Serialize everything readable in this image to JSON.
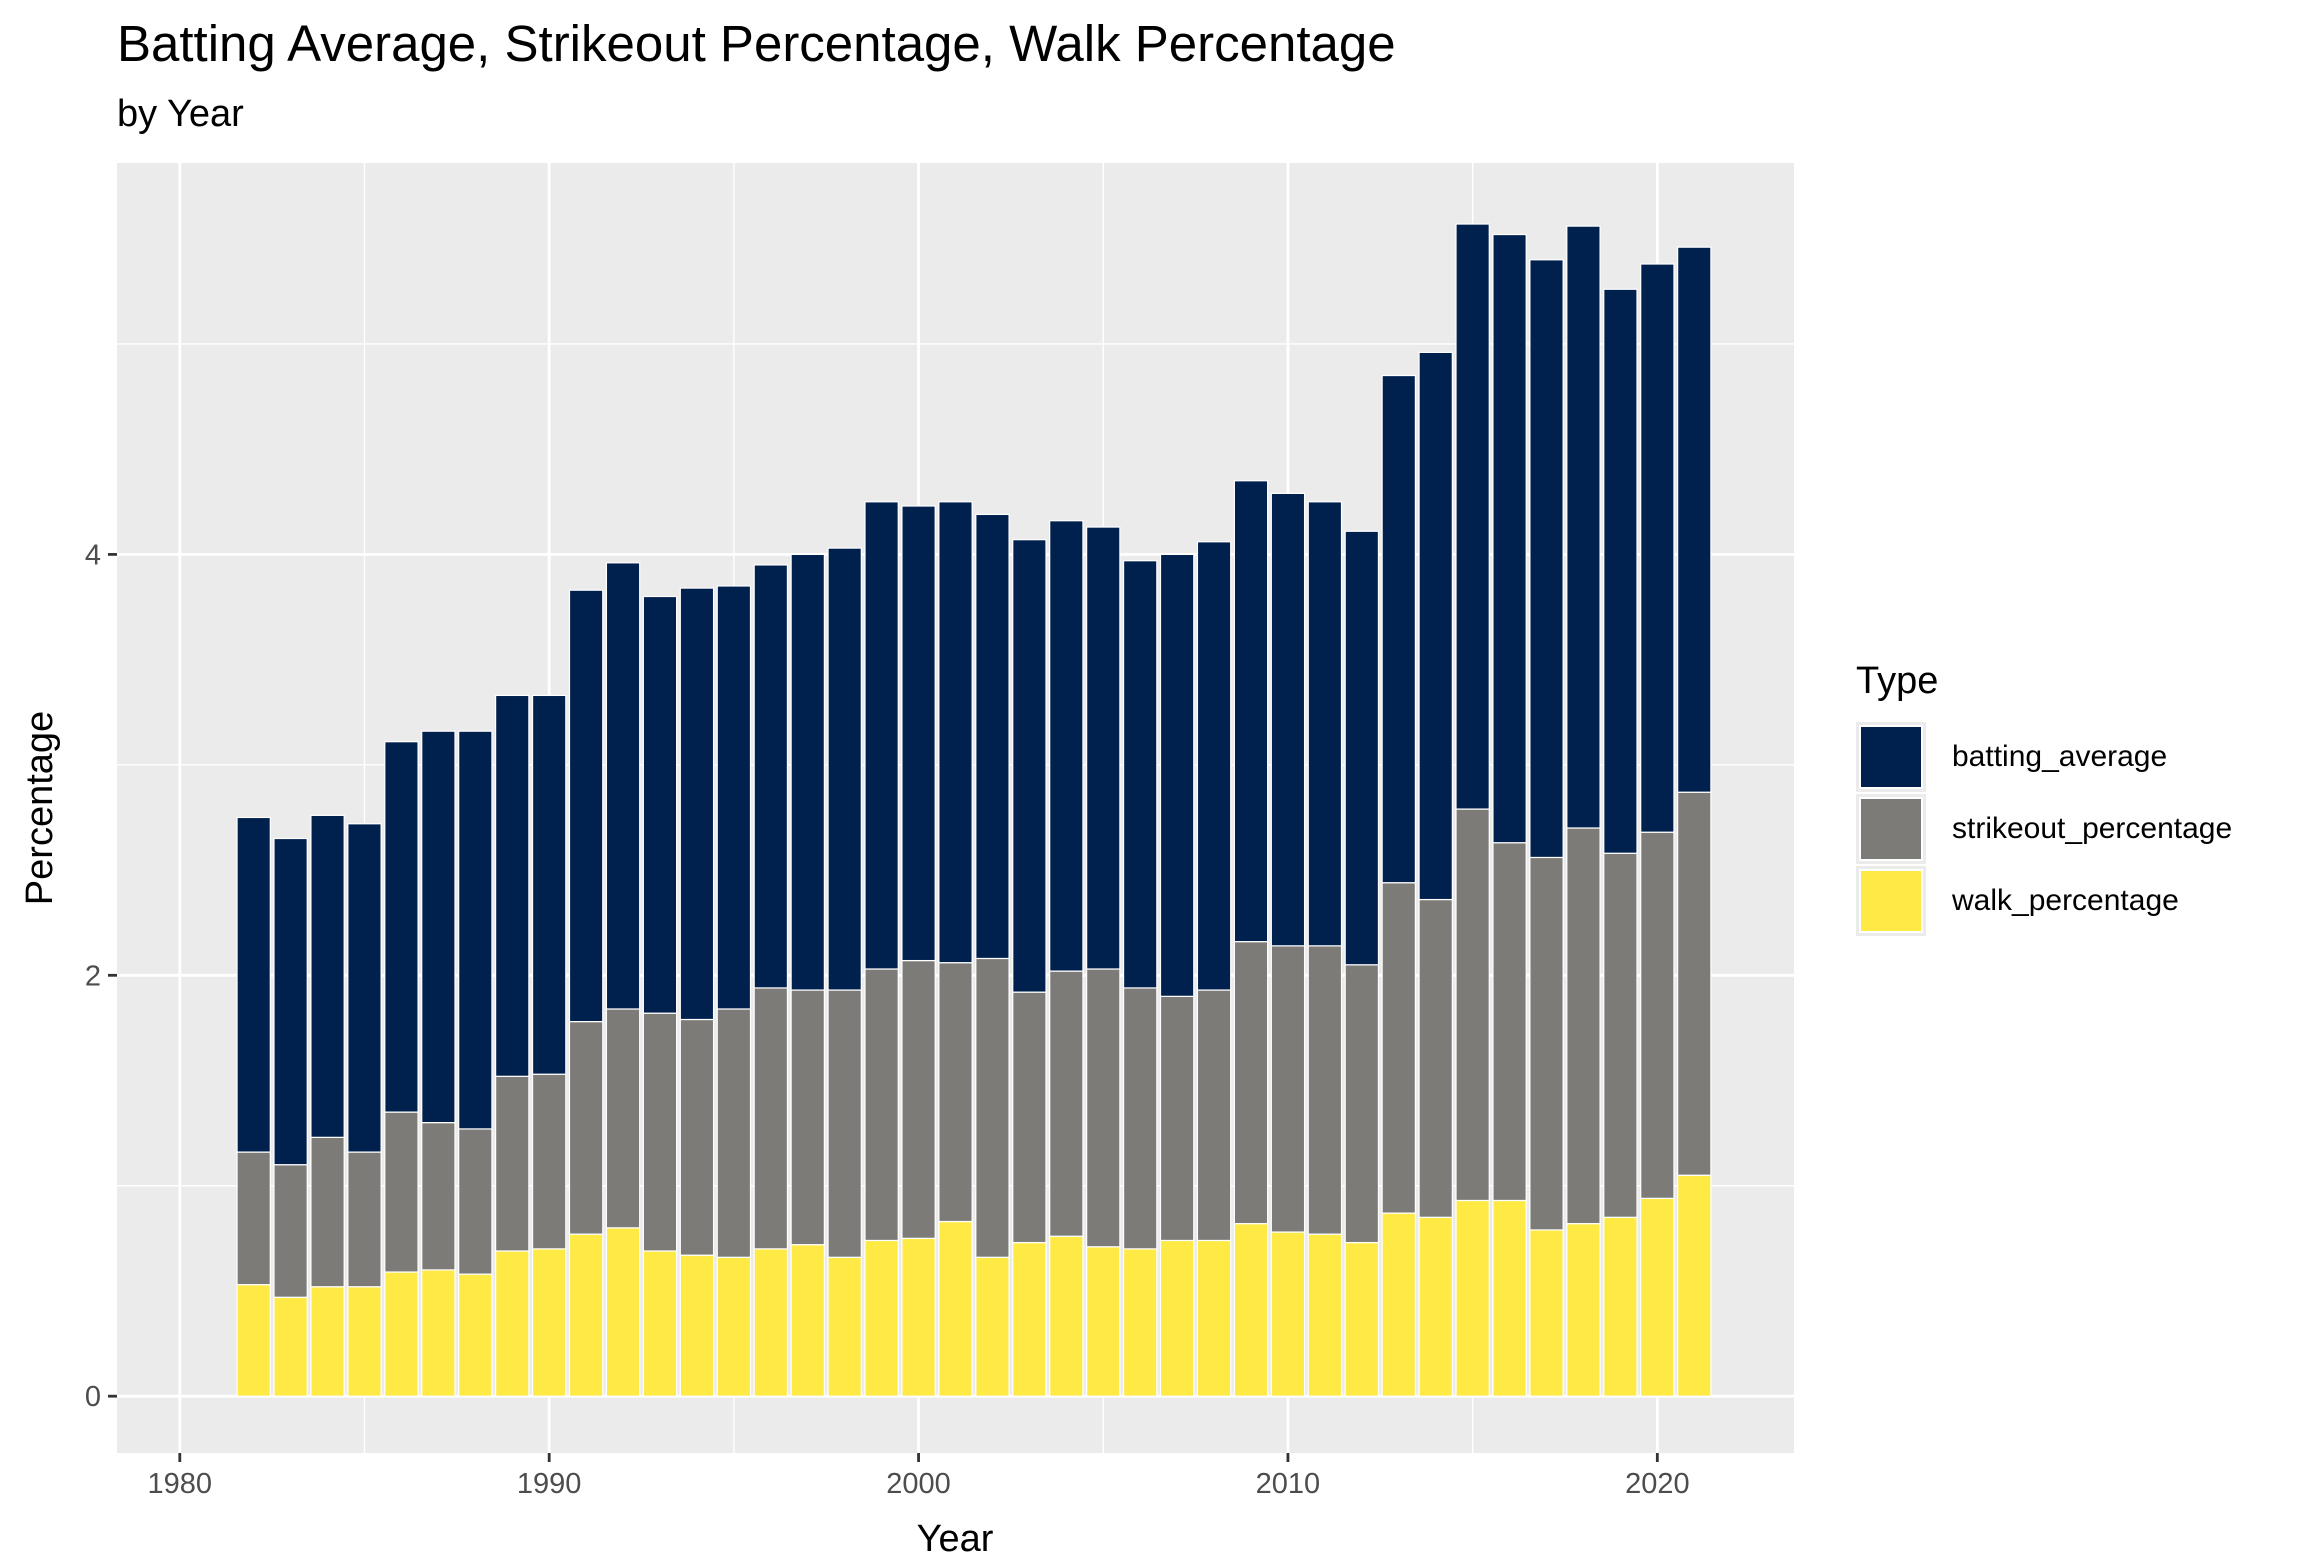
{
  "title": "Batting Average, Strikeout Percentage, Walk Percentage",
  "subtitle": "by Year",
  "chart_data": {
    "type": "bar",
    "stacked": true,
    "xlabel": "Year",
    "ylabel": "Percentage",
    "xlim": [
      1978.3,
      2023.7
    ],
    "ylim": [
      -0.27,
      5.86
    ],
    "x_ticks": [
      1980,
      1990,
      2000,
      2010,
      2020
    ],
    "y_ticks": [
      0,
      2,
      4
    ],
    "grid": true,
    "legend": {
      "title": "Type",
      "position": "right"
    },
    "x": [
      1982,
      1983,
      1984,
      1985,
      1986,
      1987,
      1988,
      1989,
      1990,
      1991,
      1992,
      1993,
      1994,
      1995,
      1996,
      1997,
      1998,
      1999,
      2000,
      2001,
      2002,
      2003,
      2004,
      2005,
      2006,
      2007,
      2008,
      2009,
      2010,
      2011,
      2012,
      2013,
      2014,
      2015,
      2016,
      2017,
      2018,
      2019,
      2020,
      2021
    ],
    "series": [
      {
        "name": "walk_percentage",
        "color": "#ffe945",
        "values": [
          0.53,
          0.47,
          0.52,
          0.52,
          0.59,
          0.6,
          0.58,
          0.69,
          0.7,
          0.77,
          0.8,
          0.69,
          0.67,
          0.66,
          0.7,
          0.72,
          0.66,
          0.74,
          0.75,
          0.83,
          0.66,
          0.73,
          0.76,
          0.71,
          0.7,
          0.74,
          0.74,
          0.82,
          0.78,
          0.77,
          0.73,
          0.87,
          0.85,
          0.93,
          0.93,
          0.79,
          0.82,
          0.85,
          0.94,
          1.05
        ]
      },
      {
        "name": "strikeout_percentage",
        "color": "#7c7b78",
        "values": [
          0.63,
          0.63,
          0.71,
          0.64,
          0.76,
          0.7,
          0.69,
          0.83,
          0.83,
          1.01,
          1.04,
          1.13,
          1.12,
          1.18,
          1.24,
          1.21,
          1.27,
          1.29,
          1.32,
          1.23,
          1.42,
          1.19,
          1.26,
          1.32,
          1.24,
          1.16,
          1.19,
          1.34,
          1.36,
          1.37,
          1.32,
          1.57,
          1.51,
          1.86,
          1.7,
          1.77,
          1.88,
          1.73,
          1.74,
          1.82
        ]
      },
      {
        "name": "batting_average",
        "color": "#00204e",
        "values": [
          1.59,
          1.55,
          1.53,
          1.56,
          1.76,
          1.86,
          1.89,
          1.81,
          1.8,
          2.05,
          2.12,
          1.98,
          2.05,
          2.01,
          2.01,
          2.07,
          2.1,
          2.22,
          2.16,
          2.19,
          2.11,
          2.15,
          2.14,
          2.1,
          2.03,
          2.1,
          2.13,
          2.19,
          2.15,
          2.11,
          2.06,
          2.41,
          2.6,
          2.78,
          2.89,
          2.84,
          2.86,
          2.68,
          2.7,
          2.59
        ]
      }
    ]
  }
}
